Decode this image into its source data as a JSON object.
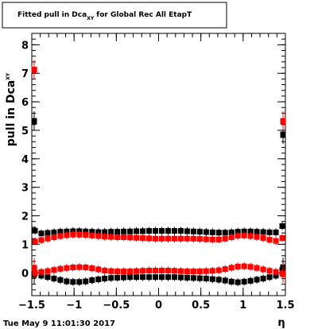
{
  "title": {
    "prefix": "Fitted pull in Dca",
    "subscript": "XY",
    "suffix": " for Global Rec All EtapT"
  },
  "ylabel": {
    "main": "pull in Dca",
    "subscript": "XY"
  },
  "xlabel": "η",
  "timestamp": "Tue May  9 11:01:30 2017",
  "colors": {
    "series_black": "#000000",
    "series_red": "#ff0000",
    "frame": "#000000",
    "background": "#ffffff"
  },
  "chart_data": {
    "type": "scatter",
    "xlim": [
      -1.5,
      1.5
    ],
    "ylim": [
      -0.8,
      8.4
    ],
    "xticks": [
      -1.5,
      -1,
      -0.5,
      0,
      0.5,
      1,
      1.5
    ],
    "xtick_labels": [
      "−1.5",
      "−1",
      "−0.5",
      "0",
      "0.5",
      "1",
      "1.5"
    ],
    "yticks": [
      0,
      1,
      2,
      3,
      4,
      5,
      6,
      7,
      8
    ],
    "ytick_labels": [
      "0",
      "1",
      "2",
      "3",
      "4",
      "5",
      "6",
      "7",
      "8"
    ],
    "grid": false,
    "legend": "none",
    "x": [
      -1.4625,
      -1.3875,
      -1.3125,
      -1.2375,
      -1.1625,
      -1.0875,
      -1.0125,
      -0.9375,
      -0.8625,
      -0.7875,
      -0.7125,
      -0.6375,
      -0.5625,
      -0.4875,
      -0.4125,
      -0.3375,
      -0.2625,
      -0.1875,
      -0.1125,
      -0.0375,
      0.0375,
      0.1125,
      0.1875,
      0.2625,
      0.3375,
      0.4125,
      0.4875,
      0.5625,
      0.6375,
      0.7125,
      0.7875,
      0.8625,
      0.9375,
      1.0125,
      1.0875,
      1.1625,
      1.2375,
      1.3125,
      1.3875,
      1.4625
    ],
    "series": [
      {
        "color": "#000000",
        "values": [
          1.48,
          1.38,
          1.4,
          1.42,
          1.44,
          1.45,
          1.46,
          1.46,
          1.45,
          1.44,
          1.43,
          1.43,
          1.44,
          1.44,
          1.45,
          1.45,
          1.46,
          1.46,
          1.47,
          1.47,
          1.47,
          1.47,
          1.47,
          1.47,
          1.46,
          1.45,
          1.44,
          1.43,
          1.42,
          1.41,
          1.41,
          1.42,
          1.44,
          1.45,
          1.45,
          1.44,
          1.43,
          1.42,
          1.42,
          1.64
        ],
        "edges": {
          "x": [
            -1.5,
            1.5
          ],
          "values": [
            5.33,
            4.86
          ]
        }
      },
      {
        "color": "#ff0000",
        "values": [
          1.1,
          1.15,
          1.2,
          1.25,
          1.29,
          1.32,
          1.34,
          1.34,
          1.33,
          1.31,
          1.29,
          1.27,
          1.26,
          1.25,
          1.25,
          1.24,
          1.23,
          1.22,
          1.21,
          1.2,
          1.2,
          1.2,
          1.2,
          1.2,
          1.2,
          1.2,
          1.19,
          1.18,
          1.17,
          1.17,
          1.2,
          1.25,
          1.3,
          1.31,
          1.29,
          1.26,
          1.22,
          1.16,
          1.12,
          1.22
        ],
        "edges": {
          "x": [
            -1.5,
            1.5
          ],
          "values": [
            7.13,
            5.33
          ]
        }
      },
      {
        "color": "#000000",
        "values": [
          0.0,
          -0.1,
          -0.15,
          -0.2,
          -0.25,
          -0.3,
          -0.32,
          -0.32,
          -0.3,
          -0.26,
          -0.23,
          -0.2,
          -0.18,
          -0.17,
          -0.16,
          -0.15,
          -0.15,
          -0.15,
          -0.15,
          -0.15,
          -0.15,
          -0.15,
          -0.15,
          -0.16,
          -0.17,
          -0.18,
          -0.19,
          -0.2,
          -0.22,
          -0.24,
          -0.27,
          -0.31,
          -0.33,
          -0.31,
          -0.28,
          -0.24,
          -0.2,
          -0.15,
          -0.1,
          0.1
        ],
        "edges": {
          "x": [
            -1.5,
            1.5
          ],
          "values": [
            -0.05,
            0.2
          ]
        }
      },
      {
        "color": "#ff0000",
        "values": [
          0.0,
          0.03,
          0.06,
          0.1,
          0.14,
          0.17,
          0.19,
          0.2,
          0.19,
          0.16,
          0.12,
          0.08,
          0.06,
          0.05,
          0.05,
          0.05,
          0.06,
          0.07,
          0.08,
          0.08,
          0.08,
          0.08,
          0.07,
          0.06,
          0.05,
          0.05,
          0.05,
          0.06,
          0.07,
          0.09,
          0.13,
          0.18,
          0.22,
          0.23,
          0.21,
          0.17,
          0.12,
          0.07,
          0.03,
          -0.02
        ],
        "edges": {
          "x": [
            -1.5,
            1.5
          ],
          "values": [
            0.18,
            -0.02
          ]
        }
      }
    ]
  }
}
